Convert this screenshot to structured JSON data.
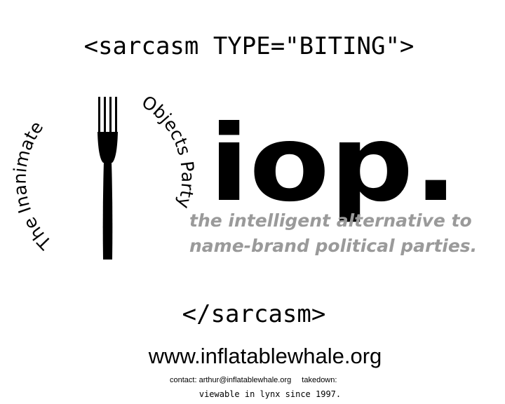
{
  "header": {
    "open_tag": "<sarcasm TYPE=\"BITING\">"
  },
  "logo": {
    "arc_left": "The Inanimate",
    "arc_right": "Objects Party",
    "wordmark": "iop.",
    "tagline_line1": "the intelligent alternative to",
    "tagline_line2": "name-brand political parties.",
    "fork_icon": "fork-icon",
    "wordmark_color": "#000000",
    "tagline_color": "#9a9a9a"
  },
  "footer": {
    "close_tag": "</sarcasm>",
    "site_url": "www.inflatablewhale.org",
    "contact": "contact: arthur@inflatablewhale.org",
    "takedown": "takedown:",
    "lynx_note": "viewable in lynx since 1997."
  }
}
